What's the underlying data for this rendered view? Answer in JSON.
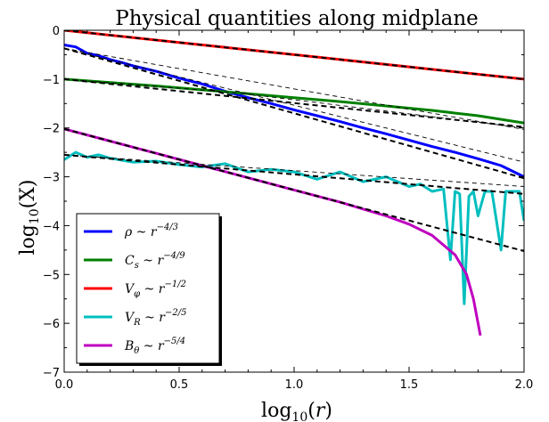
{
  "chart_data": {
    "type": "line",
    "title": "Physical quantities along midplane",
    "xlabel": "log10(r)",
    "ylabel": "log10(X)",
    "xlim": [
      0.0,
      2.0
    ],
    "ylim": [
      -7,
      0
    ],
    "xticks": [
      "0.0",
      "0.5",
      "1.0",
      "1.5",
      "2.0"
    ],
    "yticks": [
      "0",
      "−1",
      "−2",
      "−3",
      "−4",
      "−5",
      "−6",
      "−7"
    ],
    "grid": false,
    "legend_position": "lower-left",
    "series": [
      {
        "name": "ρ ~ r^−4/3",
        "color": "#0000ff",
        "x": [
          0.0,
          0.05,
          0.1,
          0.15,
          0.2,
          0.25,
          0.3,
          0.4,
          0.5,
          0.6,
          0.7,
          0.8,
          0.9,
          1.0,
          1.1,
          1.2,
          1.3,
          1.4,
          1.5,
          1.6,
          1.7,
          1.8,
          1.9,
          2.0
        ],
        "values": [
          -0.3,
          -0.34,
          -0.47,
          -0.52,
          -0.6,
          -0.66,
          -0.73,
          -0.84,
          -0.98,
          -1.1,
          -1.25,
          -1.38,
          -1.5,
          -1.63,
          -1.75,
          -1.87,
          -2.0,
          -2.12,
          -2.25,
          -2.38,
          -2.5,
          -2.63,
          -2.77,
          -3.0
        ]
      },
      {
        "name": "C_s ~ r^−4/9",
        "color": "#008000",
        "x": [
          0.0,
          0.2,
          0.4,
          0.6,
          0.8,
          1.0,
          1.2,
          1.4,
          1.6,
          1.8,
          2.0
        ],
        "values": [
          -1.0,
          -1.07,
          -1.14,
          -1.22,
          -1.3,
          -1.38,
          -1.46,
          -1.55,
          -1.64,
          -1.75,
          -1.9
        ]
      },
      {
        "name": "V_φ ~ r^−1/2",
        "color": "#ff0000",
        "x": [
          0.0,
          0.5,
          1.0,
          1.5,
          2.0
        ],
        "values": [
          0.0,
          -0.25,
          -0.5,
          -0.75,
          -1.0
        ]
      },
      {
        "name": "V_R ~ r^−2/5",
        "color": "#00bfbf",
        "x": [
          0.0,
          0.05,
          0.1,
          0.15,
          0.2,
          0.3,
          0.4,
          0.5,
          0.6,
          0.7,
          0.8,
          0.9,
          1.0,
          1.1,
          1.2,
          1.3,
          1.4,
          1.5,
          1.55,
          1.6,
          1.65,
          1.68,
          1.7,
          1.72,
          1.74,
          1.76,
          1.78,
          1.8,
          1.83,
          1.86,
          1.9,
          1.92,
          1.94,
          1.96,
          1.98,
          2.0
        ],
        "values": [
          -2.65,
          -2.5,
          -2.6,
          -2.55,
          -2.62,
          -2.7,
          -2.68,
          -2.75,
          -2.8,
          -2.73,
          -2.9,
          -2.85,
          -2.9,
          -3.05,
          -2.9,
          -3.1,
          -3.0,
          -3.2,
          -3.15,
          -3.3,
          -3.25,
          -4.7,
          -3.3,
          -3.35,
          -5.6,
          -3.4,
          -3.3,
          -3.8,
          -3.3,
          -3.3,
          -4.5,
          -3.3,
          -3.3,
          -3.3,
          -3.3,
          -3.9
        ]
      },
      {
        "name": "B_θ ~ r^−5/4",
        "color": "#bf00bf",
        "x": [
          0.0,
          0.2,
          0.4,
          0.6,
          0.8,
          1.0,
          1.2,
          1.3,
          1.4,
          1.5,
          1.6,
          1.7,
          1.75,
          1.78,
          1.8,
          1.81
        ],
        "values": [
          -2.02,
          -2.27,
          -2.52,
          -2.77,
          -3.02,
          -3.27,
          -3.52,
          -3.66,
          -3.8,
          -3.97,
          -4.2,
          -4.6,
          -5.0,
          -5.5,
          -6.0,
          -6.25
        ]
      }
    ],
    "fits": [
      {
        "style": "thick-dashed",
        "x": [
          0.0,
          2.0
        ],
        "values": [
          0.0,
          -1.0
        ]
      },
      {
        "style": "thick-dashed",
        "x": [
          0.0,
          2.0
        ],
        "values": [
          -0.37,
          -3.03
        ]
      },
      {
        "style": "thin-dashed",
        "x": [
          0.0,
          2.0
        ],
        "values": [
          -0.37,
          -2.03
        ]
      },
      {
        "style": "thin-dashed",
        "x": [
          0.0,
          2.0
        ],
        "values": [
          -0.37,
          -2.7
        ]
      },
      {
        "style": "thick-dashed",
        "x": [
          0.0,
          2.0
        ],
        "values": [
          -1.0,
          -1.98
        ]
      },
      {
        "style": "thin-dashed",
        "x": [
          0.0,
          0.75,
          2.0
        ],
        "values": [
          -1.0,
          -1.28,
          -2.0
        ]
      },
      {
        "style": "thick-dashed",
        "x": [
          0.0,
          2.0
        ],
        "values": [
          -2.02,
          -4.52
        ]
      },
      {
        "style": "thick-dashed",
        "x": [
          0.0,
          2.0
        ],
        "values": [
          -2.55,
          -3.35
        ]
      },
      {
        "style": "thin-dashed",
        "x": [
          0.0,
          2.0
        ],
        "values": [
          -2.55,
          -3.2
        ]
      }
    ]
  }
}
